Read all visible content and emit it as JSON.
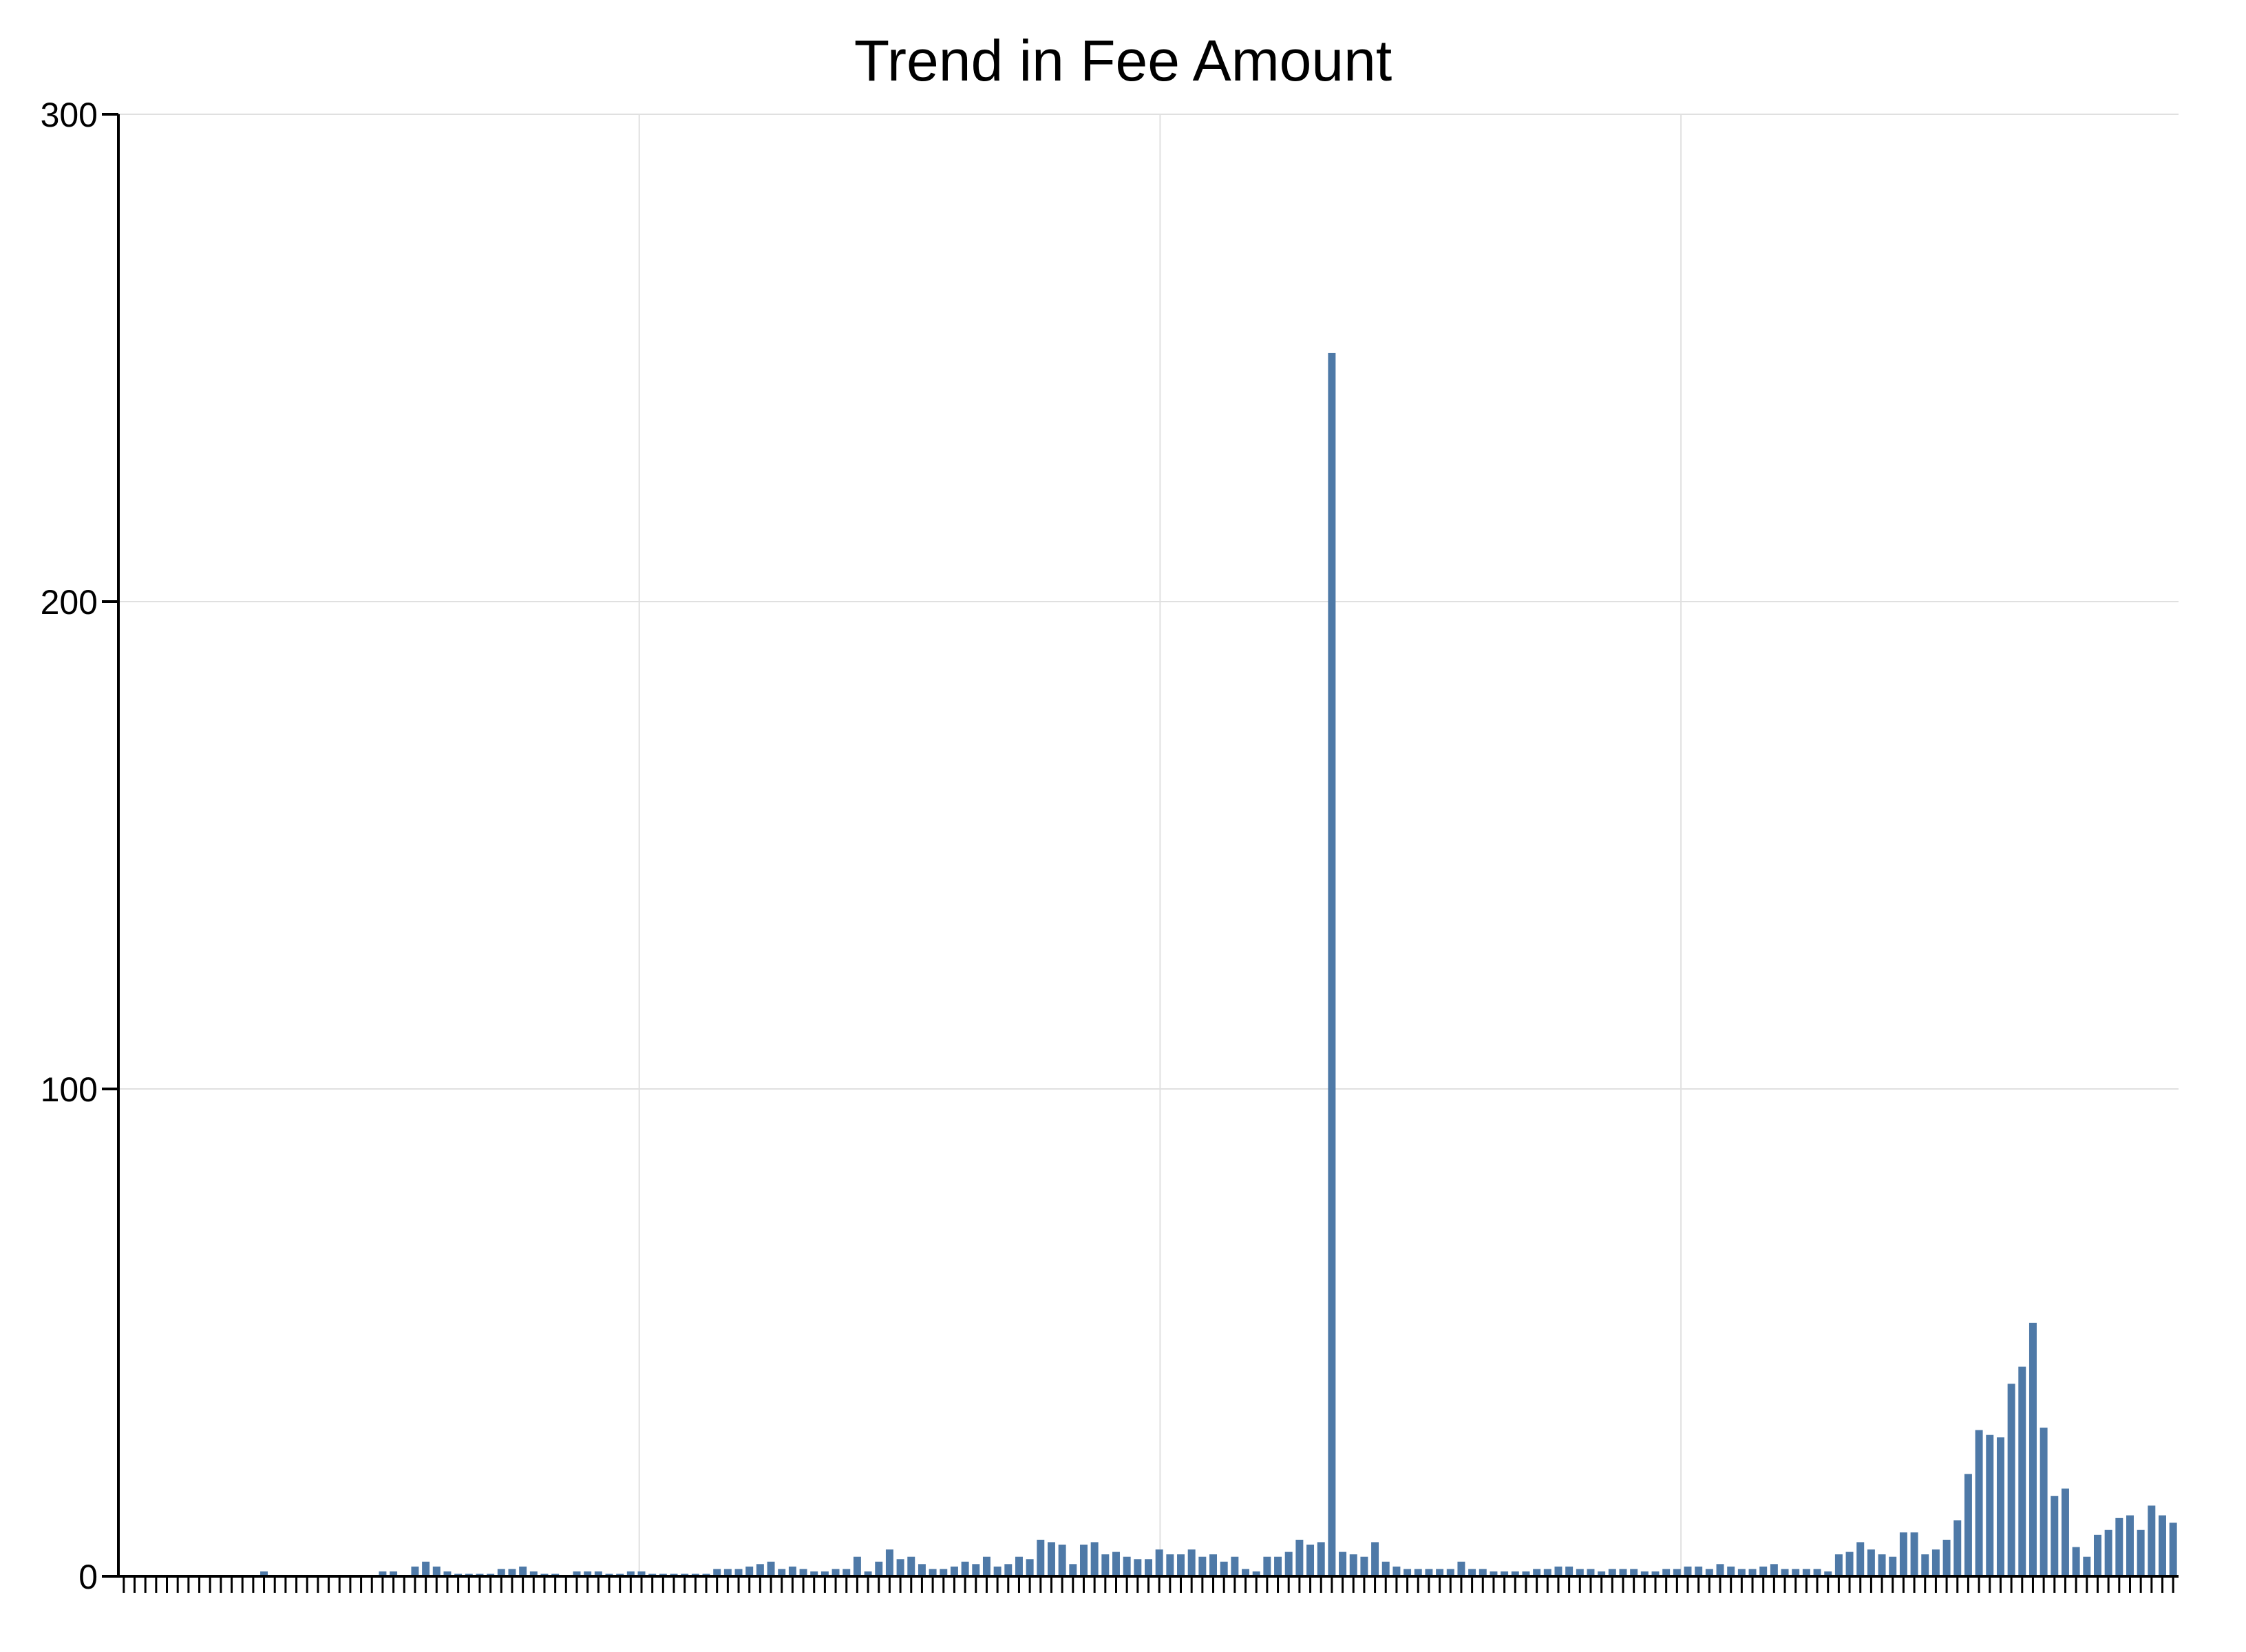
{
  "chart_data": {
    "type": "bar",
    "title": "Trend in Fee Amount",
    "xlabel": "",
    "ylabel": "",
    "ylim": [
      0,
      300
    ],
    "yticks": [
      "0",
      "100",
      "200",
      "300"
    ],
    "grid": true,
    "legend": "none",
    "bar_color": "#4e79a7",
    "gridline_color": "#e0e0e0",
    "axis_color": "#000000",
    "values": [
      0,
      0,
      0,
      0,
      0,
      0,
      0,
      0,
      0,
      0,
      0,
      0,
      0,
      1,
      0,
      0,
      0,
      0,
      0,
      0,
      0,
      0,
      0,
      0,
      1,
      1,
      0,
      2,
      3,
      2,
      1,
      0.5,
      0.5,
      0.5,
      0.5,
      1.5,
      1.5,
      2,
      1,
      0.5,
      0.5,
      0,
      1,
      1,
      1,
      0.5,
      0.5,
      1,
      1,
      0.5,
      0.5,
      0.5,
      0.5,
      0.5,
      0.5,
      1.5,
      1.5,
      1.5,
      2,
      2.5,
      3,
      1.5,
      2,
      1.5,
      1,
      1,
      1.5,
      1.5,
      4,
      1,
      3,
      5.5,
      3.5,
      4,
      2.5,
      1.5,
      1.5,
      2,
      3,
      2.5,
      4,
      2,
      2.5,
      4,
      3.5,
      7.5,
      7,
      6.5,
      2.5,
      6.5,
      7,
      4.5,
      5,
      4,
      3.5,
      3.5,
      5.5,
      4.5,
      4.5,
      5.5,
      4,
      4.5,
      3,
      4,
      1.5,
      1,
      4,
      4,
      5,
      7.5,
      6.5,
      7,
      251,
      5,
      4.5,
      4,
      7,
      3,
      2,
      1.5,
      1.5,
      1.5,
      1.5,
      1.5,
      3,
      1.5,
      1.5,
      1,
      1,
      1,
      1,
      1.5,
      1.5,
      2,
      2,
      1.5,
      1.5,
      1,
      1.5,
      1.5,
      1.5,
      1,
      1,
      1.5,
      1.5,
      2,
      2,
      1.5,
      2.5,
      2,
      1.5,
      1.5,
      2,
      2.5,
      1.5,
      1.5,
      1.5,
      1.5,
      1,
      4.5,
      5,
      7,
      5.5,
      4.5,
      4,
      9,
      9,
      4.5,
      5.5,
      7.5,
      11.5,
      21,
      30,
      29,
      28.5,
      39.5,
      43,
      52,
      30.5,
      16.5,
      18,
      6,
      4,
      8.5,
      9.5,
      12,
      12.5,
      9.5,
      14.5,
      12.5,
      11
    ]
  }
}
